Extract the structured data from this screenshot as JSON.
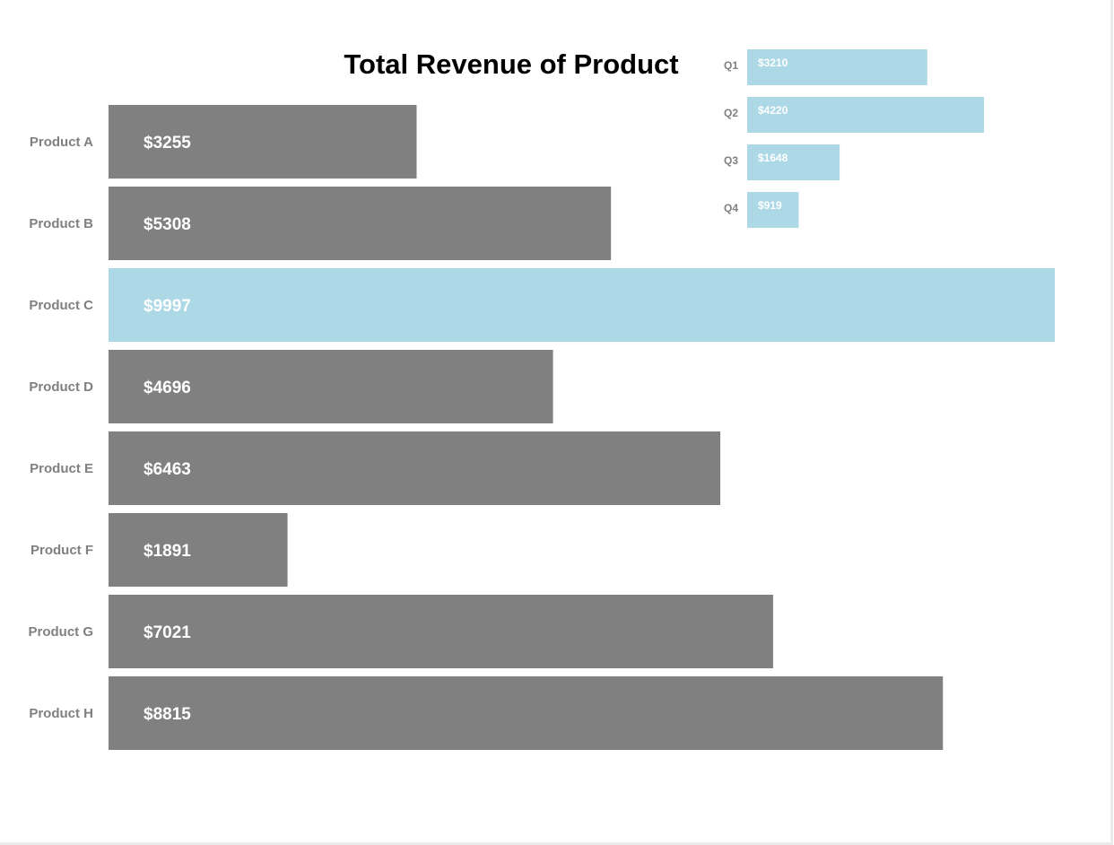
{
  "chart_data": [
    {
      "type": "bar",
      "orientation": "horizontal",
      "title": "Total Revenue of Product",
      "categories": [
        "Product A",
        "Product B",
        "Product C",
        "Product D",
        "Product E",
        "Product F",
        "Product G",
        "Product H"
      ],
      "values": [
        3255,
        5308,
        9997,
        4696,
        6463,
        1891,
        7021,
        8815
      ],
      "value_labels": [
        "$3255",
        "$5308",
        "$9997",
        "$4696",
        "$6463",
        "$1891",
        "$7021",
        "$8815"
      ],
      "highlighted_category": "Product C",
      "xlim": [
        0,
        9997
      ],
      "grid": false,
      "colors": {
        "default_bar": "#808080",
        "highlight_bar": "#add8e6",
        "category_label": "#808080",
        "value_label": "#ffffff",
        "title": "#000000"
      }
    },
    {
      "type": "bar",
      "orientation": "horizontal",
      "title": "",
      "placement": "top-right inset",
      "categories": [
        "Q1",
        "Q2",
        "Q3",
        "Q4"
      ],
      "values": [
        3210,
        4220,
        1648,
        919
      ],
      "value_labels": [
        "$3210",
        "$4220",
        "$1648",
        "$919"
      ],
      "xlim": [
        0,
        4220
      ],
      "grid": false,
      "colors": {
        "bar": "#add8e6",
        "category_label": "#808080",
        "value_label": "#ffffff"
      }
    }
  ]
}
